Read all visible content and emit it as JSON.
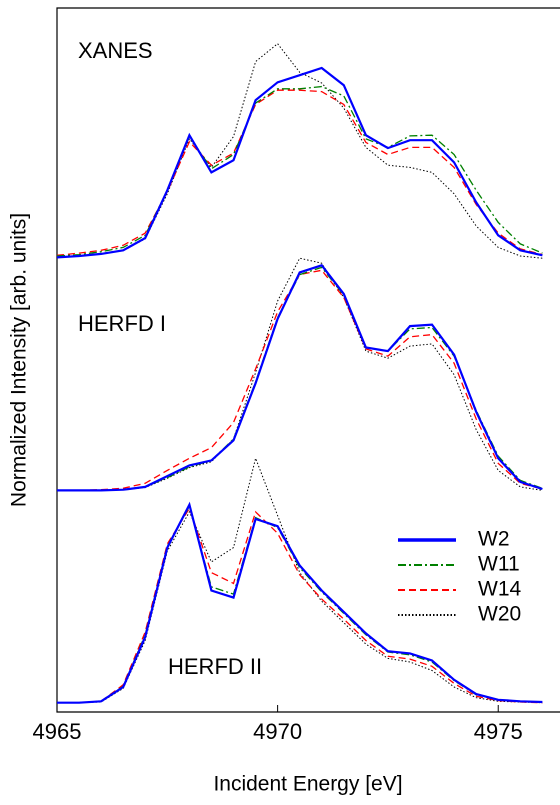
{
  "chart_data": {
    "type": "line",
    "x_label": "Incident Energy [eV]",
    "y_label": "Normalized Intensity [arb. units]",
    "x": [
      4965,
      4965.5,
      4966,
      4966.5,
      4967,
      4967.5,
      4968,
      4968.5,
      4969,
      4969.5,
      4970,
      4970.5,
      4971,
      4971.5,
      4972,
      4972.5,
      4973,
      4973.5,
      4974,
      4974.5,
      4975,
      4975.5,
      4976
    ],
    "xlim": [
      4965,
      4976.4
    ],
    "xticks": [
      4965,
      4970,
      4975
    ],
    "ylim": [
      0,
      9.85
    ],
    "legend": "lower right",
    "panels": [
      {
        "label": "XANES",
        "series": [
          {
            "name": "W2",
            "color": "#0000ff",
            "dash": "solid",
            "values": [
              6.36,
              6.38,
              6.41,
              6.46,
              6.63,
              7.3,
              8.07,
              7.55,
              7.72,
              8.56,
              8.81,
              8.91,
              9.01,
              8.77,
              8.07,
              7.89,
              8.0,
              8.0,
              7.69,
              7.13,
              6.67,
              6.46,
              6.39
            ]
          },
          {
            "name": "W11",
            "color": "#008000",
            "dash": "dashdot",
            "values": [
              6.38,
              6.4,
              6.44,
              6.5,
              6.67,
              7.3,
              8.05,
              7.6,
              7.8,
              8.52,
              8.72,
              8.72,
              8.75,
              8.62,
              8.02,
              7.9,
              8.06,
              8.07,
              7.8,
              7.3,
              6.85,
              6.55,
              6.42
            ]
          },
          {
            "name": "W14",
            "color": "#ff0000",
            "dash": "dashed",
            "values": [
              6.39,
              6.42,
              6.46,
              6.53,
              6.7,
              7.28,
              7.98,
              7.65,
              7.82,
              8.5,
              8.7,
              8.7,
              8.68,
              8.5,
              7.97,
              7.8,
              7.9,
              7.9,
              7.62,
              7.1,
              6.7,
              6.48,
              6.4
            ]
          },
          {
            "name": "W20",
            "color": "#000000",
            "dash": "dotted",
            "values": [
              6.36,
              6.38,
              6.41,
              6.46,
              6.62,
              7.25,
              8.02,
              7.62,
              8.05,
              9.1,
              9.35,
              8.95,
              8.8,
              8.45,
              7.9,
              7.65,
              7.62,
              7.55,
              7.25,
              6.8,
              6.5,
              6.38,
              6.35
            ]
          }
        ]
      },
      {
        "label": "HERFD I",
        "series": [
          {
            "name": "W2",
            "color": "#0000ff",
            "dash": "solid",
            "values": [
              3.1,
              3.1,
              3.1,
              3.11,
              3.15,
              3.3,
              3.45,
              3.52,
              3.8,
              4.6,
              5.5,
              6.15,
              6.25,
              5.85,
              5.1,
              5.05,
              5.4,
              5.42,
              5.0,
              4.2,
              3.55,
              3.22,
              3.12
            ]
          },
          {
            "name": "W11",
            "color": "#008000",
            "dash": "dashdot",
            "values": [
              3.1,
              3.1,
              3.1,
              3.11,
              3.15,
              3.28,
              3.43,
              3.52,
              3.82,
              4.62,
              5.52,
              6.12,
              6.22,
              5.83,
              5.1,
              5.05,
              5.36,
              5.38,
              4.98,
              4.22,
              3.58,
              3.24,
              3.13
            ]
          },
          {
            "name": "W14",
            "color": "#ff0000",
            "dash": "dashed",
            "values": [
              3.1,
              3.1,
              3.11,
              3.13,
              3.2,
              3.38,
              3.55,
              3.7,
              4.05,
              4.8,
              5.6,
              6.12,
              6.18,
              5.8,
              5.08,
              4.98,
              5.25,
              5.28,
              4.88,
              4.1,
              3.48,
              3.2,
              3.12
            ]
          },
          {
            "name": "W20",
            "color": "#000000",
            "dash": "dotted",
            "values": [
              3.1,
              3.1,
              3.1,
              3.11,
              3.14,
              3.27,
              3.42,
              3.5,
              3.82,
              4.75,
              5.75,
              6.35,
              6.28,
              5.8,
              5.05,
              4.95,
              5.12,
              5.15,
              4.72,
              3.95,
              3.38,
              3.15,
              3.1
            ]
          }
        ]
      },
      {
        "label": "HERFD II",
        "series": [
          {
            "name": "W2",
            "color": "#0000ff",
            "dash": "solid",
            "values": [
              0.13,
              0.13,
              0.15,
              0.35,
              1.05,
              2.3,
              2.9,
              1.7,
              1.6,
              2.7,
              2.6,
              2.05,
              1.7,
              1.4,
              1.1,
              0.85,
              0.82,
              0.72,
              0.45,
              0.25,
              0.17,
              0.15,
              0.14
            ]
          },
          {
            "name": "W11",
            "color": "#008000",
            "dash": "dashdot",
            "values": [
              0.13,
              0.13,
              0.15,
              0.36,
              1.08,
              2.32,
              2.88,
              1.75,
              1.65,
              2.72,
              2.58,
              2.02,
              1.68,
              1.38,
              1.08,
              0.84,
              0.8,
              0.7,
              0.44,
              0.24,
              0.17,
              0.15,
              0.14
            ]
          },
          {
            "name": "W14",
            "color": "#ff0000",
            "dash": "dashed",
            "values": [
              0.13,
              0.13,
              0.15,
              0.38,
              1.12,
              2.35,
              2.85,
              1.95,
              1.8,
              2.8,
              2.5,
              1.92,
              1.58,
              1.3,
              1.0,
              0.78,
              0.74,
              0.64,
              0.4,
              0.22,
              0.16,
              0.14,
              0.13
            ]
          },
          {
            "name": "W20",
            "color": "#000000",
            "dash": "dotted",
            "values": [
              0.13,
              0.13,
              0.14,
              0.33,
              1.0,
              2.25,
              2.8,
              2.1,
              2.3,
              3.55,
              2.75,
              1.95,
              1.55,
              1.25,
              0.95,
              0.75,
              0.7,
              0.58,
              0.35,
              0.2,
              0.15,
              0.14,
              0.13
            ]
          }
        ]
      }
    ]
  }
}
